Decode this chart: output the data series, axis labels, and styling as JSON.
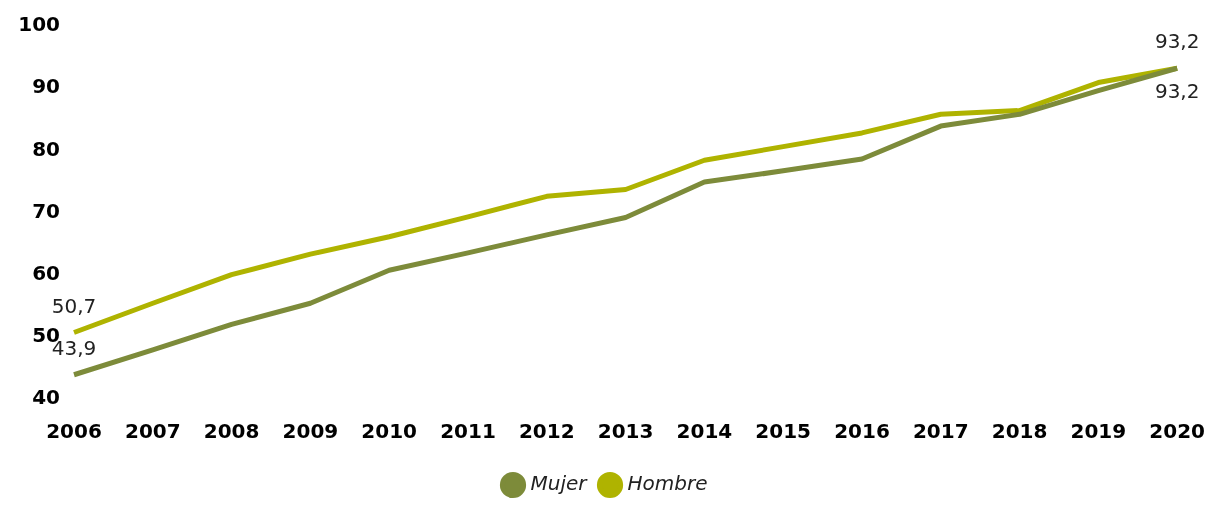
{
  "chart_data": {
    "type": "line",
    "categories": [
      "2006",
      "2007",
      "2008",
      "2009",
      "2010",
      "2011",
      "2012",
      "2013",
      "2014",
      "2015",
      "2016",
      "2017",
      "2018",
      "2019",
      "2020"
    ],
    "series": [
      {
        "name": "Mujer",
        "color": "#7d8b3a",
        "values": [
          43.9,
          47.9,
          52.0,
          55.4,
          60.7,
          63.5,
          66.4,
          69.2,
          74.9,
          76.7,
          78.6,
          83.9,
          85.8,
          89.6,
          93.2
        ],
        "value_labels": [
          "43,9",
          null,
          null,
          null,
          null,
          null,
          null,
          null,
          null,
          null,
          null,
          null,
          null,
          null,
          "93,2"
        ]
      },
      {
        "name": "Hombre",
        "color": "#afb300",
        "values": [
          50.7,
          55.4,
          60.0,
          63.3,
          66.1,
          69.3,
          72.6,
          73.7,
          78.4,
          80.6,
          82.8,
          85.8,
          86.4,
          90.9,
          93.2
        ],
        "value_labels": [
          "50,7",
          null,
          null,
          null,
          null,
          null,
          null,
          null,
          null,
          null,
          null,
          null,
          null,
          null,
          "93,2"
        ]
      }
    ],
    "ylim": [
      40,
      100
    ],
    "yticks": [
      40,
      50,
      60,
      70,
      80,
      90,
      100
    ],
    "legend": "bottom",
    "marker": "none"
  }
}
